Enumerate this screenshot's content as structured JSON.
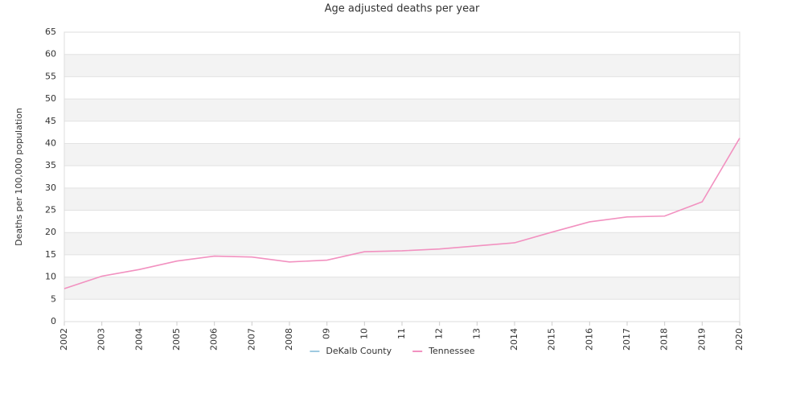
{
  "chart_data": {
    "type": "line",
    "title": "Age adjusted deaths per year",
    "y_label": "Deaths per 100,000 population",
    "categories": [
      "2002",
      "2003",
      "2004",
      "2005",
      "2006",
      "2007",
      "2008",
      "09",
      "10",
      "11",
      "12",
      "13",
      "2014",
      "2015",
      "2016",
      "2017",
      "2018",
      "2019",
      "2020"
    ],
    "series": [
      {
        "name": "DeKalb County",
        "color": "#9ecae1",
        "values": [
          null,
          null,
          null,
          null,
          null,
          null,
          null,
          null,
          null,
          null,
          null,
          null,
          null,
          null,
          null,
          null,
          null,
          null,
          null
        ]
      },
      {
        "name": "Tennessee",
        "color": "#f291c0",
        "values": [
          7.4,
          10.2,
          11.7,
          13.6,
          14.7,
          14.5,
          13.4,
          13.8,
          15.7,
          15.9,
          16.3,
          17.0,
          17.7,
          20.1,
          22.4,
          23.5,
          23.7,
          26.9,
          41.2
        ]
      }
    ],
    "ylim": [
      0,
      65
    ],
    "yticks": [
      0,
      5,
      10,
      15,
      20,
      25,
      30,
      35,
      40,
      45,
      50,
      55,
      60,
      65
    ],
    "grid": true,
    "banded": true,
    "legend": "bottom"
  }
}
